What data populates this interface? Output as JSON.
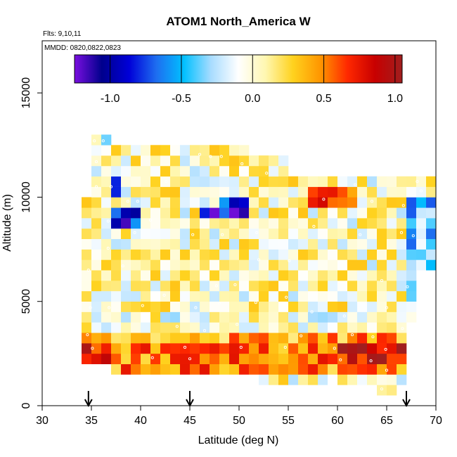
{
  "chart_data": {
    "type": "heatmap",
    "title": "ATOM1 North_America W",
    "flights_note": "Flts: 9,10,11",
    "dates_note": "MMDD: 0820,0822,0823",
    "xlabel": "Latitude (deg N)",
    "ylabel": "Altitude (m)",
    "xlim": [
      30,
      70
    ],
    "ylim": [
      0,
      17500
    ],
    "x_ticks": [
      30,
      35,
      40,
      45,
      50,
      55,
      60,
      65,
      70
    ],
    "x_tick_labels": [
      "30",
      "35",
      "40",
      "45",
      "50",
      "55",
      "60",
      "65",
      "70"
    ],
    "y_ticks": [
      0,
      5000,
      10000,
      15000
    ],
    "y_tick_labels": [
      "0",
      "5000",
      "10000",
      "15000"
    ],
    "colorbar": {
      "range": [
        -1.25,
        1.05
      ],
      "ticks": [
        -1.0,
        -0.5,
        0.0,
        0.5,
        1.0
      ],
      "tick_labels": [
        "-1.0",
        "-0.5",
        "0.0",
        "0.5",
        "1.0"
      ],
      "colors": [
        "#7a0fe0",
        "#00008c",
        "#0000d8",
        "#1e6ef0",
        "#00c0ff",
        "#a8dcff",
        "#ffffff",
        "#fff7b0",
        "#ffd21e",
        "#ff9600",
        "#ff2800",
        "#c80000",
        "#a01e1e"
      ]
    },
    "flight_arrows_latitude": [
      34.7,
      45.0,
      67.0
    ],
    "cell_size": {
      "latitude_deg": 1.0,
      "altitude_m": 500
    },
    "cells_description": "Gridded mean vertical wind W binned by latitude (1 deg) and altitude (500 m) for 3 flights; values approx -1.2 to 1.1",
    "point_markers": [
      [
        35.3,
        12700
      ],
      [
        36.2,
        12700
      ],
      [
        35.5,
        10500
      ],
      [
        37.0,
        10500
      ],
      [
        35.5,
        11700
      ],
      [
        38.7,
        9800
      ],
      [
        39.7,
        9800
      ],
      [
        42.6,
        10750
      ],
      [
        47.1,
        11950
      ],
      [
        46.0,
        12050
      ],
      [
        48.2,
        11950
      ],
      [
        50.3,
        11600
      ],
      [
        52.8,
        11150
      ],
      [
        55.8,
        11200
      ],
      [
        61.2,
        11150
      ],
      [
        58.6,
        9900
      ],
      [
        61.8,
        10600
      ],
      [
        63.5,
        9800
      ],
      [
        66.7,
        9600
      ],
      [
        68.1,
        10750
      ],
      [
        68.5,
        10300
      ],
      [
        36.7,
        8850
      ],
      [
        41.0,
        8900
      ],
      [
        45.3,
        8200
      ],
      [
        48.3,
        8200
      ],
      [
        51.8,
        8300
      ],
      [
        57.6,
        8600
      ],
      [
        62.3,
        8200
      ],
      [
        66.5,
        8300
      ],
      [
        67.7,
        8150
      ],
      [
        36.7,
        7550
      ],
      [
        39.4,
        8300
      ],
      [
        52.0,
        7000
      ],
      [
        55.1,
        6950
      ],
      [
        34.7,
        6500
      ],
      [
        38.2,
        6700
      ],
      [
        42.4,
        5300
      ],
      [
        47.7,
        5750
      ],
      [
        49.6,
        5800
      ],
      [
        54.8,
        5200
      ],
      [
        64.5,
        6000
      ],
      [
        67.1,
        5700
      ],
      [
        69.0,
        5900
      ],
      [
        34.9,
        4700
      ],
      [
        36.8,
        4700
      ],
      [
        40.2,
        4800
      ],
      [
        45.6,
        4700
      ],
      [
        48.0,
        4900
      ],
      [
        51.7,
        4950
      ],
      [
        57.4,
        4500
      ],
      [
        60.7,
        4300
      ],
      [
        65.0,
        4700
      ],
      [
        43.7,
        3800
      ],
      [
        46.5,
        3600
      ],
      [
        49.8,
        3900
      ],
      [
        56.3,
        3350
      ],
      [
        61.5,
        3400
      ],
      [
        63.6,
        3300
      ],
      [
        66.6,
        3700
      ],
      [
        34.6,
        3400
      ],
      [
        35.1,
        2750
      ],
      [
        44.5,
        2800
      ],
      [
        50.2,
        2800
      ],
      [
        54.7,
        2800
      ],
      [
        59.7,
        2750
      ],
      [
        64.9,
        2700
      ],
      [
        67.3,
        2900
      ],
      [
        41.2,
        2300
      ],
      [
        45.0,
        2250
      ],
      [
        60.3,
        2200
      ],
      [
        63.4,
        2150
      ],
      [
        65.0,
        1700
      ],
      [
        66.3,
        800
      ],
      [
        64.5,
        800
      ]
    ]
  }
}
